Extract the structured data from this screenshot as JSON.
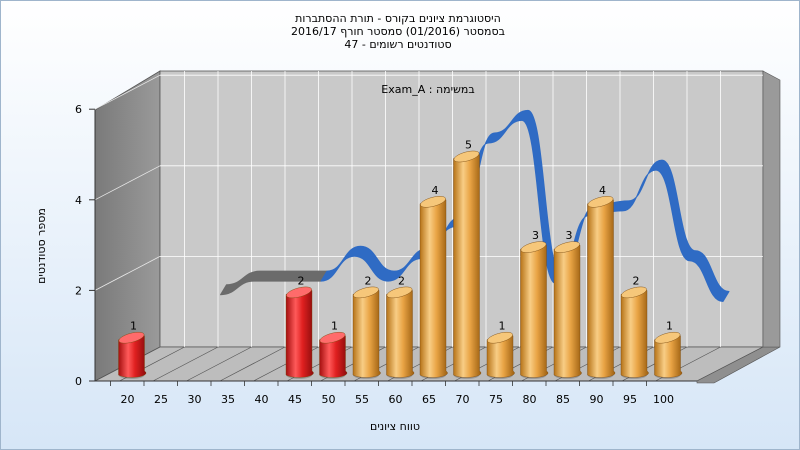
{
  "chart_data": {
    "type": "bar",
    "title_lines": [
      "היסטוגרמת ציונים בקורס - תורת ההסתברות",
      "בסמסטר  (01/2016)  סמסטר חורף 2016/17",
      "סטודנטים רשומים - 47"
    ],
    "inner_caption": "במשימה : Exam_A",
    "xlabel": "טווח ציונים",
    "ylabel": "מספר סטודנטים",
    "ylim": [
      0,
      6
    ],
    "y_ticks": [
      0,
      2,
      4,
      6
    ],
    "x_ticks": [
      "20",
      "25",
      "30",
      "35",
      "40",
      "45",
      "50",
      "55",
      "60",
      "65",
      "70",
      "75",
      "80",
      "85",
      "90",
      "95",
      "100"
    ],
    "bars": [
      {
        "x": 20,
        "value": 1,
        "label": "1",
        "color": "#e02222"
      },
      {
        "x": 45,
        "value": 2,
        "label": "2",
        "color": "#e02222"
      },
      {
        "x": 50,
        "value": 1,
        "label": "1",
        "color": "#e02222"
      },
      {
        "x": 55,
        "value": 2,
        "label": "2",
        "color": "#e9a445"
      },
      {
        "x": 60,
        "value": 2,
        "label": "2",
        "color": "#e9a445"
      },
      {
        "x": 65,
        "value": 4,
        "label": "4",
        "color": "#e9a445"
      },
      {
        "x": 70,
        "value": 5,
        "label": "5",
        "color": "#e9a445"
      },
      {
        "x": 75,
        "value": 1,
        "label": "1",
        "color": "#e9a445"
      },
      {
        "x": 80,
        "value": 3,
        "label": "3",
        "color": "#e9a445"
      },
      {
        "x": 85,
        "value": 3,
        "label": "3",
        "color": "#e9a445"
      },
      {
        "x": 90,
        "value": 4,
        "label": "4",
        "color": "#e9a445"
      },
      {
        "x": 95,
        "value": 2,
        "label": "2",
        "color": "#e9a445"
      },
      {
        "x": 100,
        "value": 1,
        "label": "1",
        "color": "#e9a445"
      }
    ],
    "trend": {
      "points": [
        [
          30,
          1.75
        ],
        [
          35,
          2.05
        ],
        [
          40,
          2.05
        ],
        [
          45,
          2.05
        ],
        [
          50,
          2.6
        ],
        [
          55,
          2.05
        ],
        [
          60,
          2.55
        ],
        [
          65,
          3.25
        ],
        [
          70,
          5.1
        ],
        [
          75,
          5.6
        ],
        [
          80,
          2.0
        ],
        [
          85,
          3.5
        ],
        [
          90,
          3.6
        ],
        [
          95,
          4.5
        ],
        [
          100,
          2.5
        ],
        [
          105,
          1.6
        ]
      ],
      "gray_until": 45,
      "gray_color": "#6b6b6b",
      "blue_color": "#2f6bc4"
    },
    "grid": true,
    "colors": {
      "panel_bg": "#c9c9c9",
      "wall": "#8a8a8a",
      "floor": "#bdbdbd",
      "background_top": "#ffffff",
      "background_bottom": "#d6e6f7"
    }
  }
}
